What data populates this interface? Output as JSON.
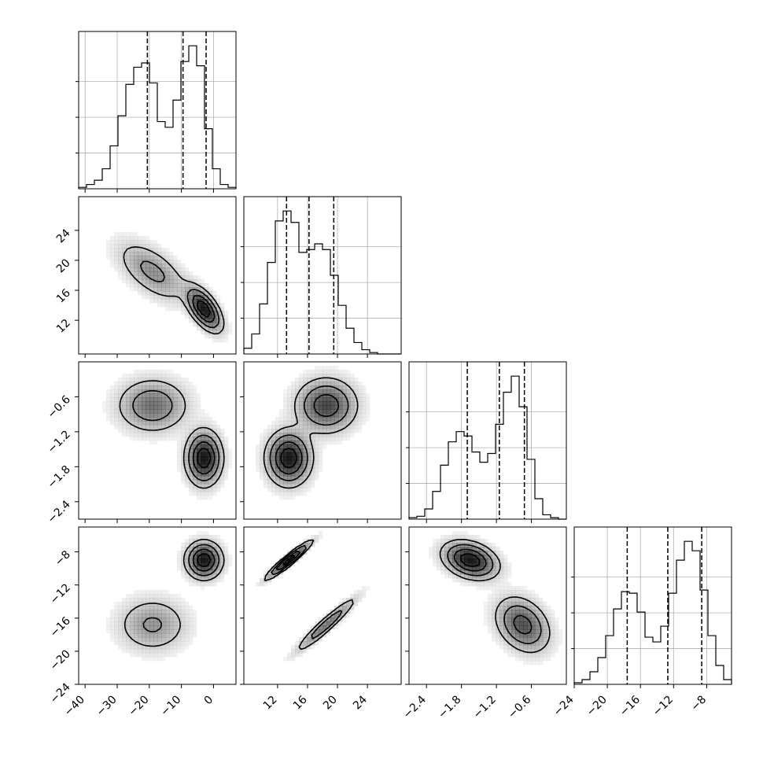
{
  "figure": {
    "background": "#ffffff",
    "axis_color": "#000000",
    "grid_color": "#b0b0b0",
    "density_color": "#000000",
    "contour_color": "#000000"
  },
  "chart_data": {
    "type": "corner",
    "title": "",
    "parameters": [
      {
        "name": "",
        "lim": [
          -42.0,
          7.0
        ],
        "ticks": [
          -40,
          -30,
          -20,
          -10,
          0
        ],
        "tick_labels": [
          "−40",
          "−30",
          "−20",
          "−10",
          "0"
        ]
      },
      {
        "name": "",
        "lim": [
          7.5,
          28.5
        ],
        "ticks": [
          12,
          16,
          20,
          24
        ],
        "tick_labels": [
          "12",
          "16",
          "20",
          "24"
        ]
      },
      {
        "name": "",
        "lim": [
          -2.7,
          -0.0
        ],
        "ticks": [
          -2.4,
          -1.8,
          -1.2,
          -0.6
        ],
        "tick_labels": [
          "−2.4",
          "−1.8",
          "−1.2",
          "−0.6"
        ]
      },
      {
        "name": "",
        "lim": [
          -24.0,
          -5.0
        ],
        "ticks": [
          -24,
          -20,
          -16,
          -12,
          -8
        ],
        "tick_labels": [
          "−24",
          "−20",
          "−16",
          "−12",
          "−8"
        ]
      }
    ],
    "mixture_components": [
      {
        "weight": 0.5,
        "mean": [
          -19.0,
          18.5,
          -0.75,
          -16.8
        ],
        "sd": [
          6.0,
          2.2,
          0.25,
          1.8
        ]
      },
      {
        "weight": 0.5,
        "mean": [
          -3.0,
          13.5,
          -1.65,
          -9.0
        ],
        "sd": [
          3.0,
          1.6,
          0.25,
          1.2
        ]
      }
    ],
    "correlations": {
      "component_1": {
        "0-1": -0.6,
        "2-3": -0.3,
        "1-3": 0.95
      },
      "component_2": {
        "0-1": -0.6,
        "2-3": -0.3,
        "1-3": 0.95
      }
    },
    "quantile_lines": [
      {
        "param": 0,
        "values": [
          -20.6,
          -9.5,
          -2.3
        ]
      },
      {
        "param": 1,
        "values": [
          13.2,
          16.2,
          19.5
        ]
      },
      {
        "param": 2,
        "values": [
          -1.7,
          -1.15,
          -0.72
        ]
      },
      {
        "param": 3,
        "values": [
          -17.6,
          -12.7,
          -8.6
        ]
      }
    ],
    "histograms": [
      {
        "param": 0,
        "bin_edges": [
          -42.0,
          -39.55,
          -37.1,
          -34.65,
          -32.2,
          -29.75,
          -27.3,
          -24.85,
          -22.4,
          -19.95,
          -17.5,
          -15.05,
          -12.6,
          -10.15,
          -7.7,
          -5.25,
          -2.8,
          -0.35,
          2.1,
          4.55,
          7.0
        ],
        "counts": [
          0.01,
          0.03,
          0.06,
          0.14,
          0.3,
          0.51,
          0.73,
          0.85,
          0.88,
          0.74,
          0.47,
          0.43,
          0.62,
          0.89,
          1.0,
          0.86,
          0.42,
          0.14,
          0.03,
          0.01
        ]
      },
      {
        "param": 1,
        "bin_edges": [
          7.5,
          8.55,
          9.6,
          10.65,
          11.7,
          12.75,
          13.8,
          14.85,
          15.9,
          16.95,
          18.0,
          19.05,
          20.1,
          21.15,
          22.2,
          23.25,
          24.3,
          25.35,
          26.4,
          27.45,
          28.5
        ],
        "counts": [
          0.04,
          0.14,
          0.35,
          0.64,
          0.93,
          1.0,
          0.92,
          0.71,
          0.73,
          0.77,
          0.73,
          0.55,
          0.34,
          0.18,
          0.08,
          0.03,
          0.01,
          0.0,
          0.0,
          0.0
        ]
      },
      {
        "param": 2,
        "bin_edges": [
          -2.7,
          -2.565,
          -2.43,
          -2.295,
          -2.16,
          -2.025,
          -1.89,
          -1.755,
          -1.62,
          -1.485,
          -1.35,
          -1.215,
          -1.08,
          -0.945,
          -0.81,
          -0.675,
          -0.54,
          -0.405,
          -0.27,
          -0.135,
          0.0
        ],
        "counts": [
          0.01,
          0.02,
          0.07,
          0.19,
          0.37,
          0.53,
          0.6,
          0.57,
          0.46,
          0.39,
          0.45,
          0.65,
          0.87,
          0.98,
          0.77,
          0.41,
          0.14,
          0.03,
          0.01,
          0.0
        ]
      },
      {
        "param": 3,
        "bin_edges": [
          -24.0,
          -23.05,
          -22.1,
          -21.15,
          -20.2,
          -19.25,
          -18.3,
          -17.35,
          -16.4,
          -15.45,
          -14.5,
          -13.55,
          -12.6,
          -11.65,
          -10.7,
          -9.75,
          -8.8,
          -7.85,
          -6.9,
          -5.95,
          -5.0
        ],
        "counts": [
          0.01,
          0.03,
          0.08,
          0.17,
          0.31,
          0.48,
          0.59,
          0.58,
          0.46,
          0.3,
          0.27,
          0.37,
          0.58,
          0.79,
          0.91,
          0.85,
          0.6,
          0.31,
          0.12,
          0.03
        ]
      }
    ],
    "panels": [
      {
        "row": 0,
        "col": 0,
        "kind": "histogram",
        "param": 0
      },
      {
        "row": 1,
        "col": 0,
        "kind": "density2d",
        "x_param": 0,
        "y_param": 1
      },
      {
        "row": 1,
        "col": 1,
        "kind": "histogram",
        "param": 1
      },
      {
        "row": 2,
        "col": 0,
        "kind": "density2d",
        "x_param": 0,
        "y_param": 2
      },
      {
        "row": 2,
        "col": 1,
        "kind": "density2d",
        "x_param": 1,
        "y_param": 2
      },
      {
        "row": 2,
        "col": 2,
        "kind": "histogram",
        "param": 2
      },
      {
        "row": 3,
        "col": 0,
        "kind": "density2d",
        "x_param": 0,
        "y_param": 3
      },
      {
        "row": 3,
        "col": 1,
        "kind": "density2d",
        "x_param": 1,
        "y_param": 3
      },
      {
        "row": 3,
        "col": 2,
        "kind": "density2d",
        "x_param": 2,
        "y_param": 3
      },
      {
        "row": 3,
        "col": 3,
        "kind": "histogram",
        "param": 3
      }
    ],
    "grid": true,
    "legend": "none"
  }
}
